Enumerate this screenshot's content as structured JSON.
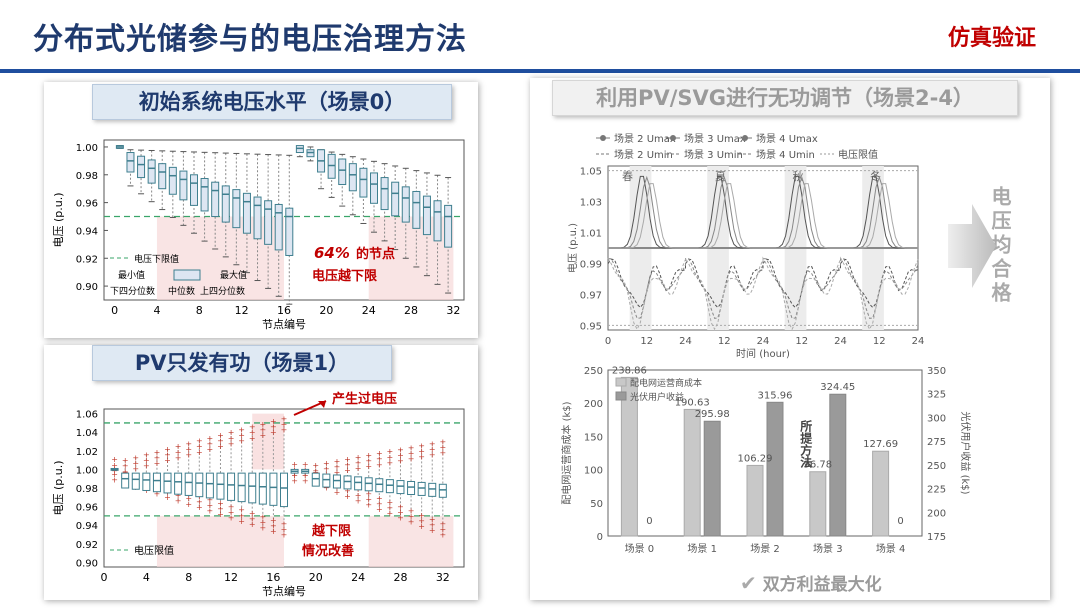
{
  "header": {
    "title": "分布式光储参与的电压治理方法",
    "tag": "仿真验证"
  },
  "panel0": {
    "banner": "初始系统电压水平（场景0）",
    "ylabel": "电压 (p.u.)",
    "xlabel": "节点编号",
    "yticks": [
      "1.00",
      "0.98",
      "0.96",
      "0.94",
      "0.92",
      "0.90"
    ],
    "xticks": [
      "0",
      "4",
      "8",
      "12",
      "16",
      "20",
      "24",
      "28",
      "32"
    ],
    "legend": "电压下限值",
    "key": {
      "min": "最小值",
      "max": "最大值",
      "q1": "下四分位数",
      "median": "中位数",
      "q3": "上四分位数"
    },
    "annotation_pct": "64%",
    "annotation_1": "的节点",
    "annotation_2": "电压越下限"
  },
  "panel1": {
    "banner": "PV只发有功（场景1）",
    "ylabel": "电压 (p.u.)",
    "xlabel": "节点编号",
    "yticks": [
      "1.06",
      "1.04",
      "1.02",
      "1.00",
      "0.98",
      "0.96",
      "0.94",
      "0.92",
      "0.90"
    ],
    "xticks": [
      "0",
      "4",
      "8",
      "12",
      "16",
      "20",
      "24",
      "28",
      "32"
    ],
    "legend": "电压限值",
    "overvoltage": "产生过电压",
    "under_1": "越下限",
    "under_2": "情况改善"
  },
  "panel2": {
    "banner": "利用PV/SVG进行无功调节（场景2-4）",
    "legend": [
      "场景 2 Umax",
      "场景 3 Umax",
      "场景 4 Umax",
      "场景 2 Umin",
      "场景 3 Umin",
      "场景 4 Umin",
      "电压限值"
    ],
    "seasons": [
      "春",
      "夏",
      "秋",
      "冬"
    ],
    "ylabel": "电压 (p.u.)",
    "yticks": [
      "1.05",
      "1.03",
      "1.01",
      "0.99",
      "0.97",
      "0.95"
    ],
    "xticks": [
      "0",
      "12",
      "24",
      "12",
      "24",
      "12",
      "24",
      "12",
      "24"
    ],
    "xlabel": "时间 (hour)",
    "side_text": "电压均合格"
  },
  "chart_data": {
    "type": "bar",
    "categories": [
      "场景 0",
      "场景 1",
      "场景 2",
      "场景 3",
      "场景 4"
    ],
    "series": [
      {
        "name": "配电网运营商成本",
        "values": [
          238.86,
          190.63,
          106.29,
          96.78,
          127.69
        ]
      },
      {
        "name": "光伏用户收益",
        "values": [
          0,
          295.98,
          315.96,
          324.45,
          0
        ]
      }
    ],
    "ylabel_left": "配电网运营商成本 (k$)",
    "ylabel_right": "光伏用户收益 (k$)",
    "ylim_left": [
      0,
      250
    ],
    "ylim_right": [
      175,
      350
    ],
    "yticks_left": [
      "0",
      "50",
      "100",
      "150",
      "200",
      "250"
    ],
    "yticks_right": [
      "175",
      "200",
      "225",
      "250",
      "275",
      "300",
      "325",
      "350"
    ],
    "labels": [
      "238.86",
      "0",
      "190.63",
      "295.98",
      "106.29",
      "315.96",
      "96.78",
      "324.45",
      "127.69",
      "0"
    ],
    "proposed": "所提方法"
  },
  "footer": {
    "conclusion": "双方利益最大化",
    "check": "✔"
  }
}
